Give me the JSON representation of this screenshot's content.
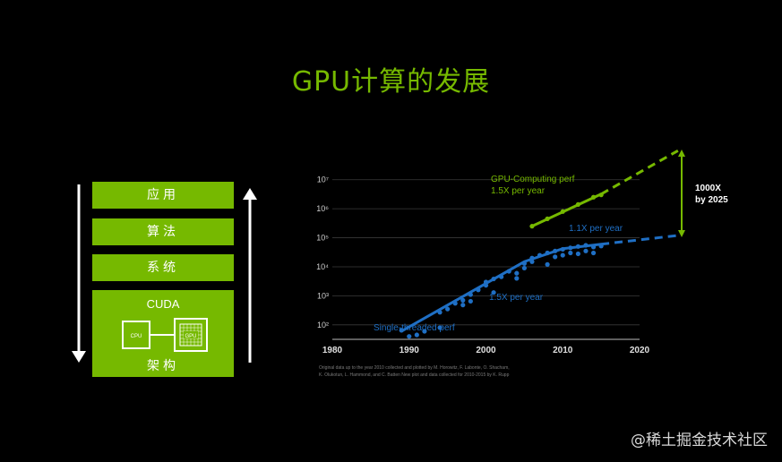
{
  "slide": {
    "title": "GPU计算的发展"
  },
  "stack": {
    "app": "应用",
    "algorithm": "算法",
    "system": "系统",
    "cuda": "CUDA",
    "cpu_label": "CPU",
    "gpu_label": "GPU",
    "architecture": "架构"
  },
  "chart_data": {
    "type": "scatter",
    "x_ticks": [
      "1980",
      "1990",
      "2000",
      "2010",
      "2020"
    ],
    "y_ticks": [
      "10²",
      "10³",
      "10⁴",
      "10⁵",
      "10⁶",
      "10⁷"
    ],
    "xlim": [
      1980,
      2020
    ],
    "ylim_log10": [
      1.5,
      7.3
    ],
    "yscale": "log",
    "grid": true,
    "series": [
      {
        "name": "Single-threaded perf",
        "color": "#1f6fc4",
        "points": [
          [
            1989,
            65
          ],
          [
            1990,
            40
          ],
          [
            1991,
            45
          ],
          [
            1992,
            60
          ],
          [
            1994,
            80
          ],
          [
            1994,
            270
          ],
          [
            1995,
            350
          ],
          [
            1996,
            550
          ],
          [
            1997,
            700
          ],
          [
            1997,
            480
          ],
          [
            1998,
            1100
          ],
          [
            1998,
            650
          ],
          [
            1999,
            1600
          ],
          [
            2000,
            3000
          ],
          [
            2000,
            2300
          ],
          [
            2001,
            3800
          ],
          [
            2001,
            1300
          ],
          [
            2002,
            4500
          ],
          [
            2003,
            7000
          ],
          [
            2004,
            6000
          ],
          [
            2004,
            4000
          ],
          [
            2005,
            9000
          ],
          [
            2005,
            13000
          ],
          [
            2006,
            20000
          ],
          [
            2006,
            15000
          ],
          [
            2007,
            25000
          ],
          [
            2008,
            30000
          ],
          [
            2008,
            12000
          ],
          [
            2009,
            35000
          ],
          [
            2009,
            22000
          ],
          [
            2010,
            40000
          ],
          [
            2010,
            25000
          ],
          [
            2011,
            45000
          ],
          [
            2011,
            30000
          ],
          [
            2012,
            50000
          ],
          [
            2012,
            28000
          ],
          [
            2013,
            55000
          ],
          [
            2013,
            35000
          ],
          [
            2014,
            48000
          ],
          [
            2014,
            30000
          ],
          [
            2015,
            52000
          ]
        ],
        "trend": [
          [
            1989,
            60
          ],
          [
            2005,
            15000
          ],
          [
            2010,
            42000
          ],
          [
            2015,
            60000
          ]
        ],
        "projection": [
          [
            2015,
            60000
          ],
          [
            2025,
            120000
          ]
        ]
      },
      {
        "name": "GPU-Computing perf",
        "color": "#76b900",
        "points": [
          [
            2006,
            250000
          ],
          [
            2008,
            450000
          ],
          [
            2010,
            800000
          ],
          [
            2012,
            1400000
          ],
          [
            2014,
            2500000
          ],
          [
            2015,
            3000000
          ]
        ],
        "trend": [
          [
            2006,
            250000
          ],
          [
            2015,
            3200000
          ]
        ],
        "projection": [
          [
            2015,
            3200000
          ],
          [
            2025,
            100000000
          ]
        ]
      }
    ],
    "annotations": {
      "gpu_rate": "1.5X per year",
      "cpu_rate_early": "1.5X per year",
      "cpu_rate_late": "1.1X per year",
      "gap_value": "1000X",
      "gap_year": "by 2025",
      "cpu_series_label": "Single-threaded perf",
      "gpu_series_label": "GPU-Computing perf"
    }
  },
  "caption": {
    "line1": "Original data up to the year 2010 collected and plotted by M. Horowitz, F. Labonte, O. Shacham,",
    "line2": "K. Olukotun, L. Hammond, and C. Batten New plot and data collected for 2010-2015 by K. Rupp"
  },
  "watermark": "@稀土掘金技术社区",
  "colors": {
    "accent_green": "#76b900",
    "cpu_blue": "#1f6fc4",
    "background": "#000000"
  }
}
